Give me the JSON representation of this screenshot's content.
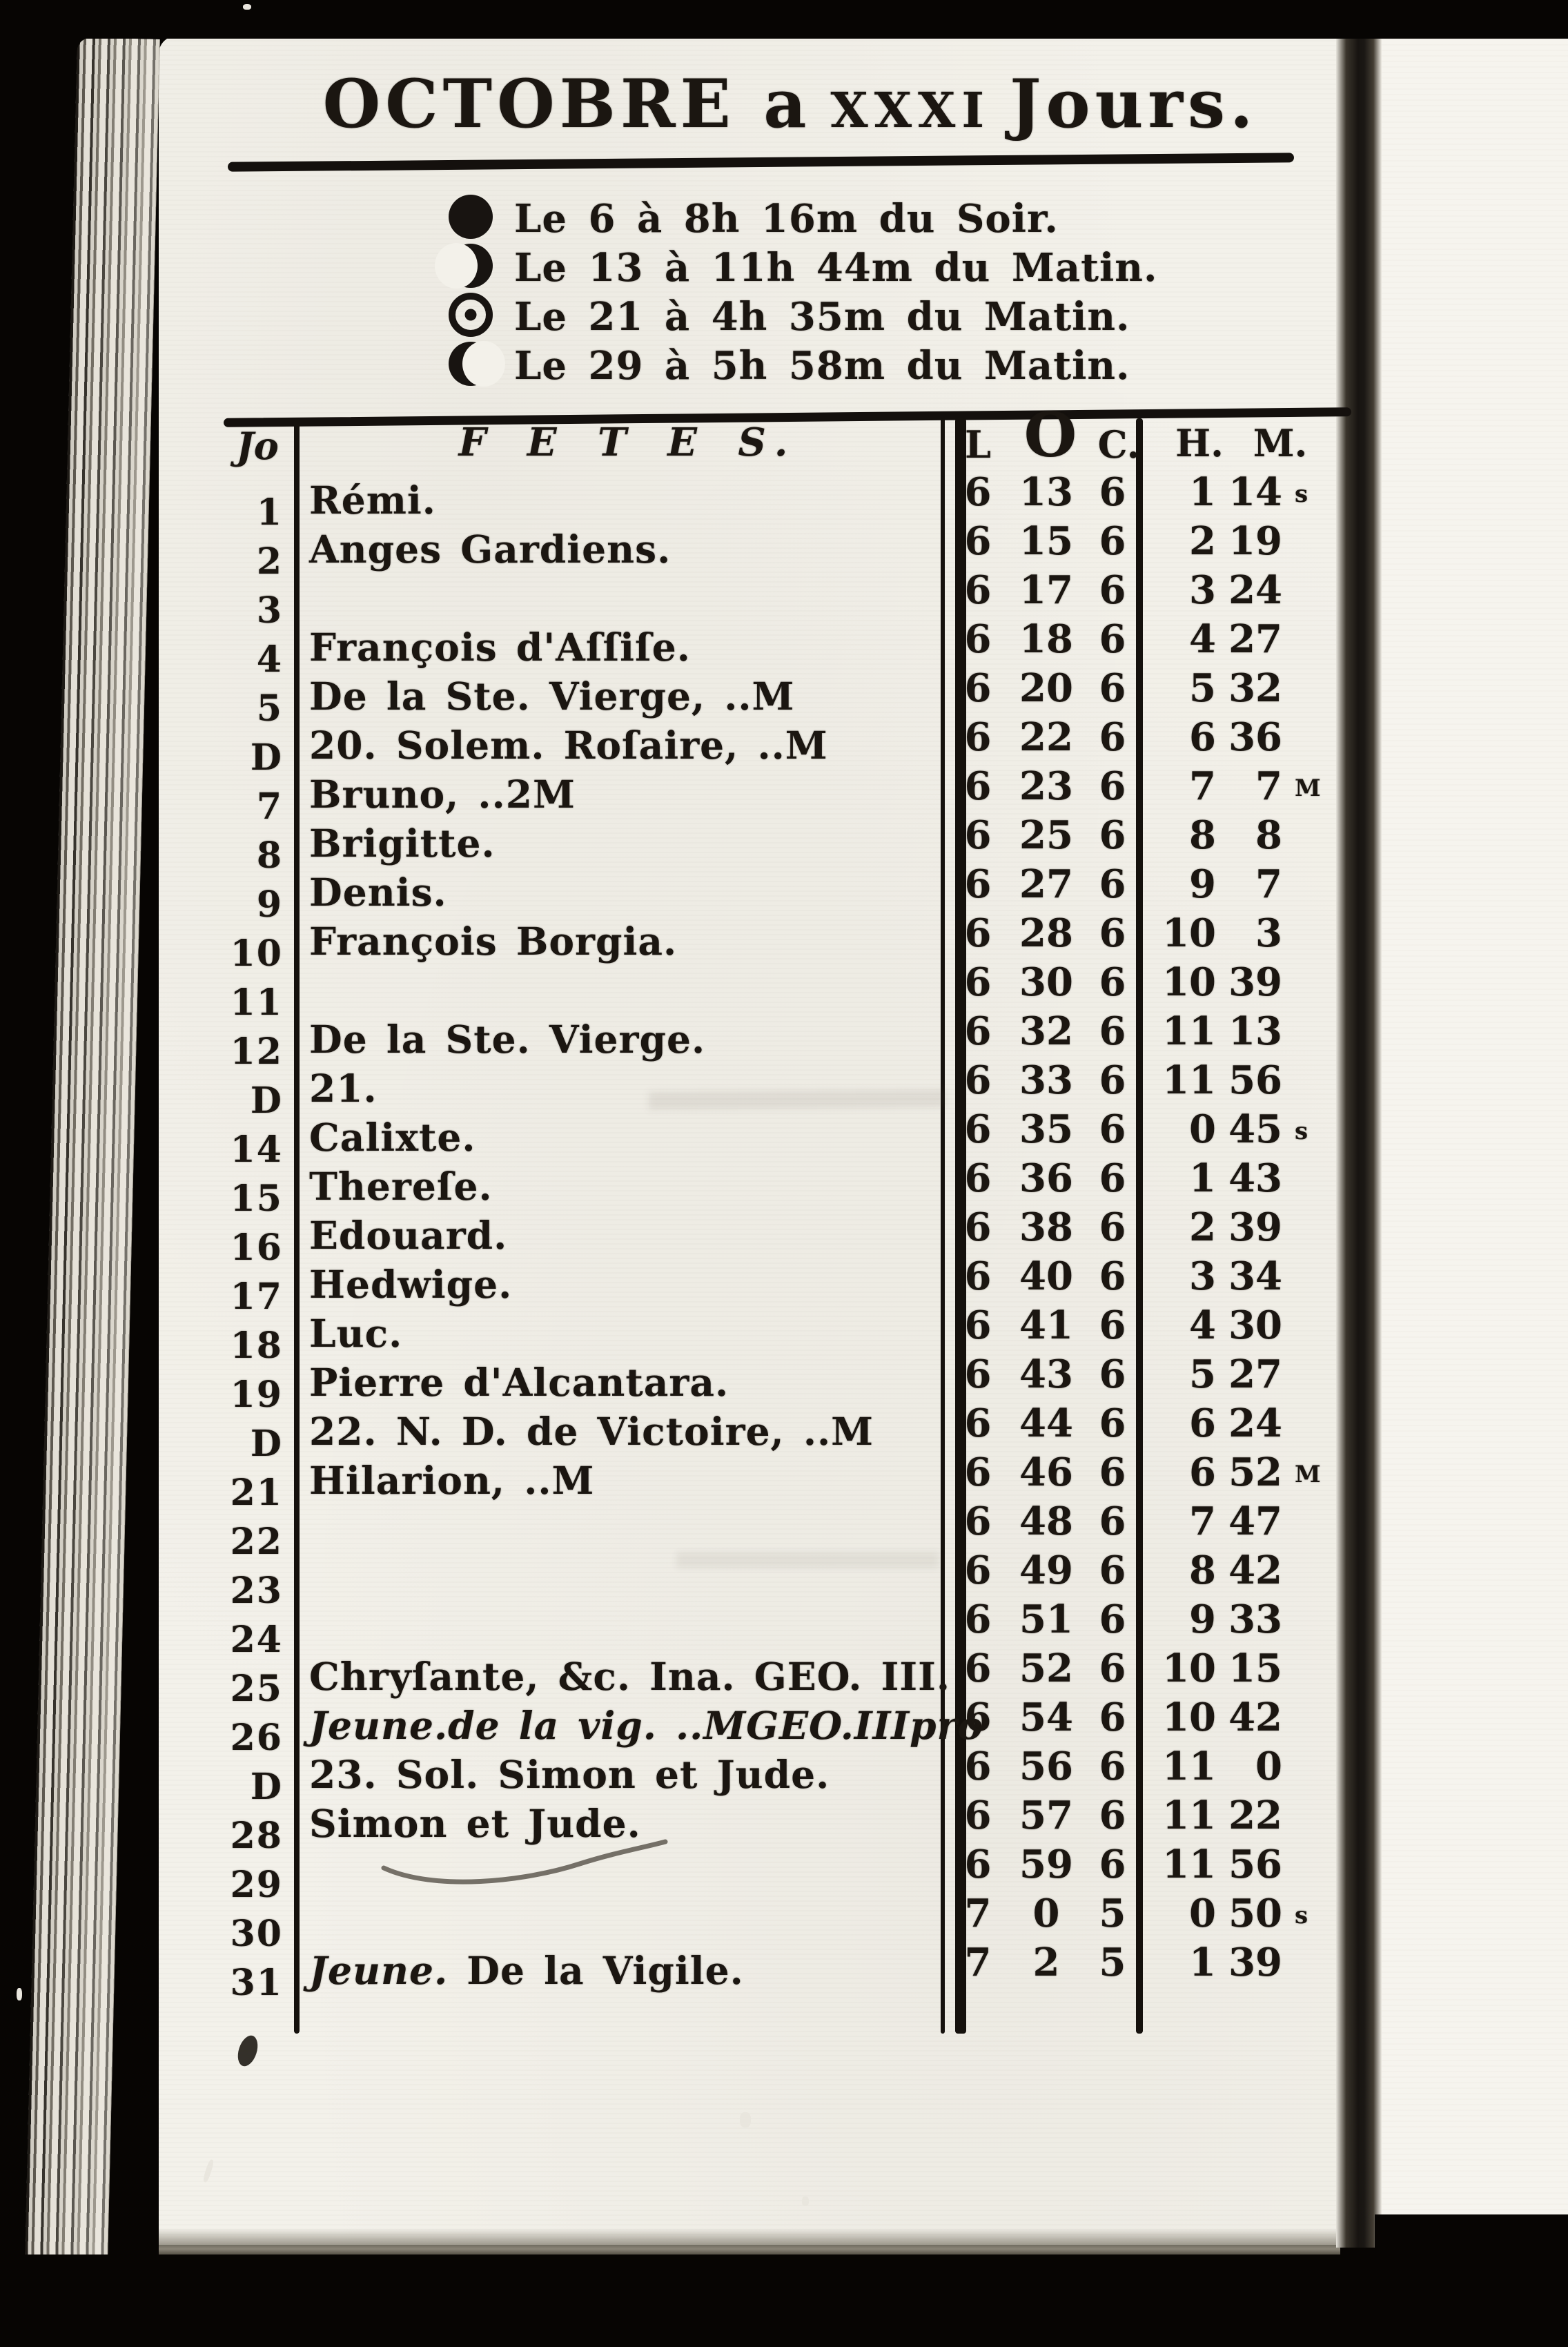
{
  "scan": {
    "ink_color": "#1b1611",
    "paper_color": "#f3f1ea",
    "title": {
      "part1": "OCTOBRE a",
      "part2": "XXXI",
      "part3": "Jours."
    },
    "phases": [
      {
        "symbol": "new-moon-icon",
        "text": "Le 6 à 8h 16m du Soir."
      },
      {
        "symbol": "first-quarter-moon-icon",
        "text": "Le 13 à 11h 44m du Matin."
      },
      {
        "symbol": "full-moon-icon",
        "text": "Le 21 à 4h 35m du Matin."
      },
      {
        "symbol": "last-quarter-moon-icon",
        "text": "Le 29 à 5h 58m du Matin."
      }
    ],
    "table": {
      "col_day": "Jo",
      "col_fetes": "F E T E S.",
      "col_l": "L",
      "col_o": "O",
      "col_c": "C.",
      "col_h": "H.",
      "col_m": "M.",
      "rows": [
        {
          "day": "1",
          "fete": "Rémi.",
          "l": "6",
          "o": "13",
          "c": "6",
          "h": "1",
          "m": "14",
          "mark": "s"
        },
        {
          "day": "2",
          "fete": "Anges Gardiens.",
          "l": "6",
          "o": "15",
          "c": "6",
          "h": "2",
          "m": "19",
          "mark": ""
        },
        {
          "day": "3",
          "fete": "",
          "l": "6",
          "o": "17",
          "c": "6",
          "h": "3",
          "m": "24",
          "mark": ""
        },
        {
          "day": "4",
          "fete": "François d'Aſſiſe.",
          "l": "6",
          "o": "18",
          "c": "6",
          "h": "4",
          "m": "27",
          "mark": ""
        },
        {
          "day": "5",
          "fete": "De la Ste. Vierge, ..M",
          "l": "6",
          "o": "20",
          "c": "6",
          "h": "5",
          "m": "32",
          "mark": ""
        },
        {
          "day": "D",
          "fete": "20. Solem. Roſaire, ..M",
          "l": "6",
          "o": "22",
          "c": "6",
          "h": "6",
          "m": "36",
          "mark": ""
        },
        {
          "day": "7",
          "fete": "Bruno, ..2M",
          "l": "6",
          "o": "23",
          "c": "6",
          "h": "7",
          "m": "7",
          "mark": "M"
        },
        {
          "day": "8",
          "fete": "Brigitte.",
          "l": "6",
          "o": "25",
          "c": "6",
          "h": "8",
          "m": "8",
          "mark": ""
        },
        {
          "day": "9",
          "fete": "Denis.",
          "l": "6",
          "o": "27",
          "c": "6",
          "h": "9",
          "m": "7",
          "mark": ""
        },
        {
          "day": "10",
          "fete": "François Borgia.",
          "l": "6",
          "o": "28",
          "c": "6",
          "h": "10",
          "m": "3",
          "mark": ""
        },
        {
          "day": "11",
          "fete": "",
          "l": "6",
          "o": "30",
          "c": "6",
          "h": "10",
          "m": "39",
          "mark": ""
        },
        {
          "day": "12",
          "fete": "De la Ste. Vierge.",
          "l": "6",
          "o": "32",
          "c": "6",
          "h": "11",
          "m": "13",
          "mark": ""
        },
        {
          "day": "D",
          "fete": "21.",
          "l": "6",
          "o": "33",
          "c": "6",
          "h": "11",
          "m": "56",
          "mark": ""
        },
        {
          "day": "14",
          "fete": "Calixte.",
          "l": "6",
          "o": "35",
          "c": "6",
          "h": "0",
          "m": "45",
          "mark": "s"
        },
        {
          "day": "15",
          "fete": "Thereſe.",
          "l": "6",
          "o": "36",
          "c": "6",
          "h": "1",
          "m": "43",
          "mark": ""
        },
        {
          "day": "16",
          "fete": "Edouard.",
          "l": "6",
          "o": "38",
          "c": "6",
          "h": "2",
          "m": "39",
          "mark": ""
        },
        {
          "day": "17",
          "fete": "Hedwige.",
          "l": "6",
          "o": "40",
          "c": "6",
          "h": "3",
          "m": "34",
          "mark": ""
        },
        {
          "day": "18",
          "fete": "Luc.",
          "l": "6",
          "o": "41",
          "c": "6",
          "h": "4",
          "m": "30",
          "mark": ""
        },
        {
          "day": "19",
          "fete": "Pierre d'Alcantara.",
          "l": "6",
          "o": "43",
          "c": "6",
          "h": "5",
          "m": "27",
          "mark": ""
        },
        {
          "day": "D",
          "fete": "22. N. D. de Victoire, ..M",
          "l": "6",
          "o": "44",
          "c": "6",
          "h": "6",
          "m": "24",
          "mark": ""
        },
        {
          "day": "21",
          "fete": "Hilarion, ..M",
          "l": "6",
          "o": "46",
          "c": "6",
          "h": "6",
          "m": "52",
          "mark": "M"
        },
        {
          "day": "22",
          "fete": "",
          "l": "6",
          "o": "48",
          "c": "6",
          "h": "7",
          "m": "47",
          "mark": ""
        },
        {
          "day": "23",
          "fete": "",
          "l": "6",
          "o": "49",
          "c": "6",
          "h": "8",
          "m": "42",
          "mark": ""
        },
        {
          "day": "24",
          "fete": "",
          "l": "6",
          "o": "51",
          "c": "6",
          "h": "9",
          "m": "33",
          "mark": ""
        },
        {
          "day": "25",
          "fete": "Chryſante, &c. Ina. GEO. III.",
          "l": "6",
          "o": "52",
          "c": "6",
          "h": "10",
          "m": "15",
          "mark": ""
        },
        {
          "day": "26",
          "lead": "Jeune.",
          "fete": "de la vig. ..MGEO.IIIpro",
          "italic": true,
          "l": "6",
          "o": "54",
          "c": "6",
          "h": "10",
          "m": "42",
          "mark": ""
        },
        {
          "day": "D",
          "fete": "23. Sol. Simon et Jude.",
          "l": "6",
          "o": "56",
          "c": "6",
          "h": "11",
          "m": "0",
          "mark": ""
        },
        {
          "day": "28",
          "fete": "Simon et Jude.",
          "l": "6",
          "o": "57",
          "c": "6",
          "h": "11",
          "m": "22",
          "mark": ""
        },
        {
          "day": "29",
          "fete": "",
          "l": "6",
          "o": "59",
          "c": "6",
          "h": "11",
          "m": "56",
          "mark": ""
        },
        {
          "day": "30",
          "fete": "",
          "l": "7",
          "o": "0",
          "c": "5",
          "h": "0",
          "m": "50",
          "mark": "s"
        },
        {
          "day": "31",
          "lead": "Jeune.",
          "fete": " De la Vigile.",
          "l": "7",
          "o": "2",
          "c": "5",
          "h": "1",
          "m": "39",
          "mark": ""
        }
      ]
    }
  }
}
